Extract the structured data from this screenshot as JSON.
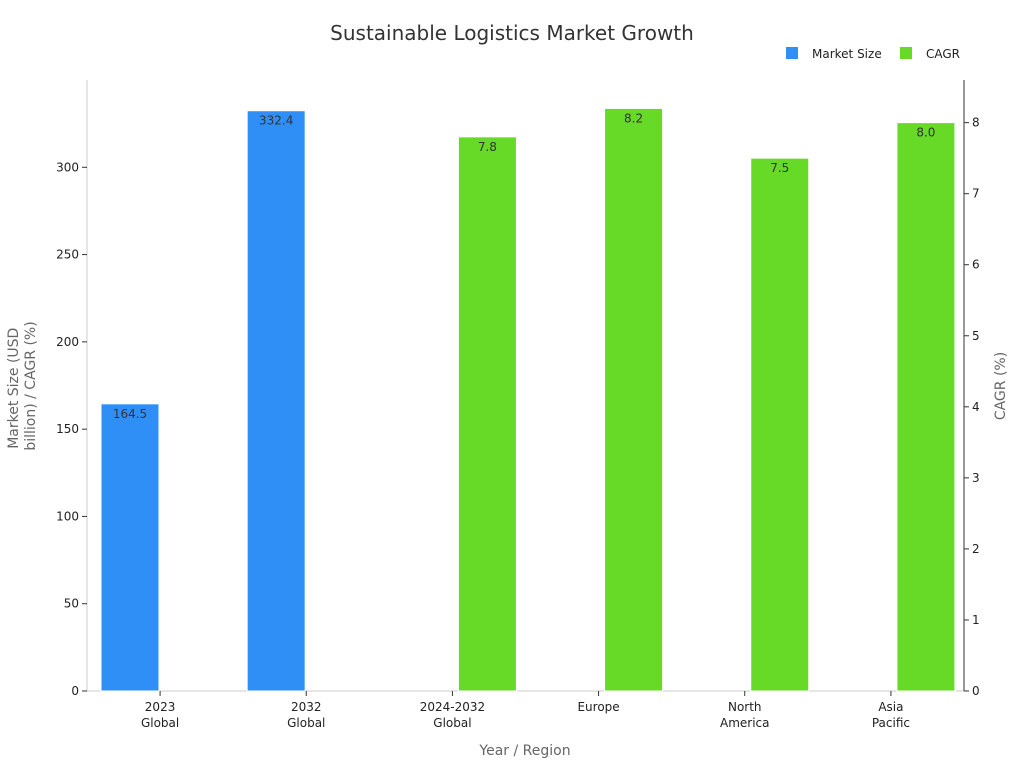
{
  "chart_data": {
    "type": "bar",
    "title": "Sustainable Logistics Market Growth",
    "xlabel": "Year / Region",
    "ylabel_lines": [
      "Market Size (USD",
      "billion) / CAGR (%)"
    ],
    "y2label": "CAGR (%)",
    "categories": [
      [
        "2023",
        "Global"
      ],
      [
        "2032",
        "Global"
      ],
      [
        "2024-2032",
        "Global"
      ],
      [
        "Europe"
      ],
      [
        "North",
        "America"
      ],
      [
        "Asia",
        "Pacific"
      ]
    ],
    "ylim": [
      0,
      350
    ],
    "yticks": [
      0,
      50,
      100,
      150,
      200,
      250,
      300
    ],
    "y2lim": [
      0,
      8.6
    ],
    "y2ticks": [
      0,
      1,
      2,
      3,
      4,
      5,
      6,
      7,
      8
    ],
    "series": [
      {
        "name": "Market Size",
        "axis": "left",
        "color": "#2f8ff7",
        "values": [
          164.5,
          332.4,
          null,
          null,
          null,
          null
        ],
        "labels": [
          "164.5",
          "332.4",
          "",
          "",
          "",
          ""
        ]
      },
      {
        "name": "CAGR",
        "axis": "right",
        "color": "#66da26",
        "values": [
          null,
          null,
          7.8,
          8.2,
          7.5,
          8.0
        ],
        "labels": [
          "",
          "",
          "7.8",
          "8.2",
          "7.5",
          "8.0"
        ]
      }
    ],
    "legend_position": "top-right"
  }
}
